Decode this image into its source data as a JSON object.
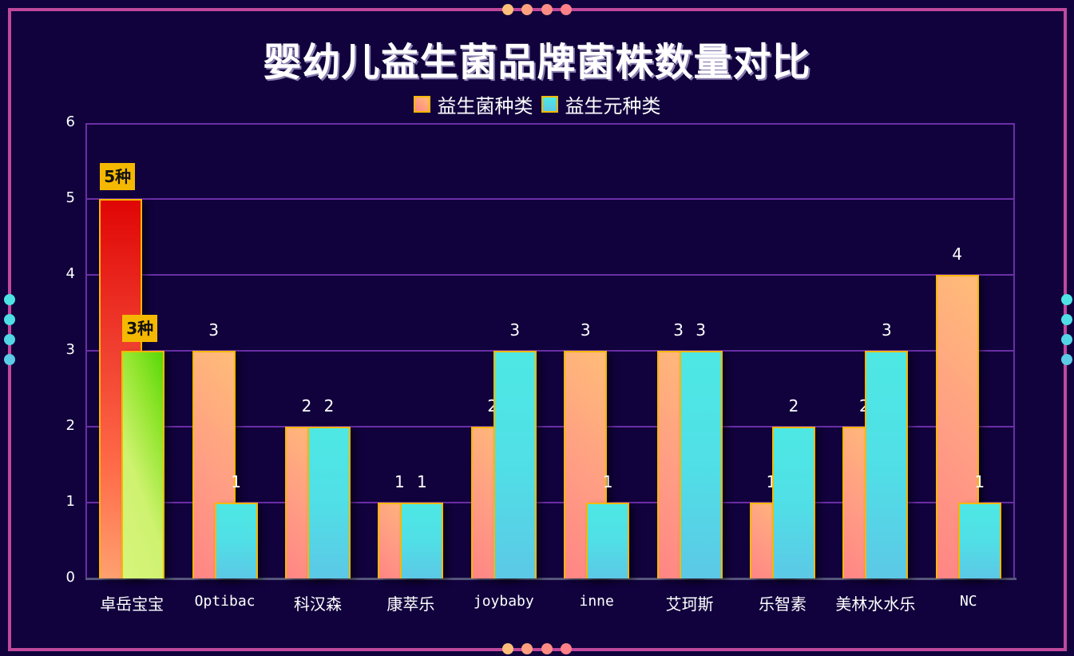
{
  "title": "婴幼儿益生菌品牌菌株数量对比",
  "legend": [
    {
      "label": "益生菌种类",
      "swatch": "probiotic"
    },
    {
      "label": "益生元种类",
      "swatch": "prebiotic"
    }
  ],
  "colors": {
    "background": "#11023d",
    "frame": "#c0499c",
    "grid": "#6b2ea6",
    "bar_border": "#f5b800",
    "probiotic_gradient": [
      "#ff8585",
      "#ffbc78"
    ],
    "prebiotic_gradient": [
      "#4ee8e4",
      "#5cc8e6"
    ],
    "highlight_probiotic": [
      "#e00606",
      "#ffa070"
    ],
    "highlight_prebiotic": [
      "#56d80a",
      "#d6f47c"
    ],
    "highlight_label_bg": "#f5b800"
  },
  "highlight_labels": {
    "probiotic": "5种",
    "prebiotic": "3种"
  },
  "chart_data": {
    "type": "bar",
    "title": "婴幼儿益生菌品牌菌株数量对比",
    "categories": [
      "卓岳宝宝",
      "Optibac",
      "科汉森",
      "康萃乐",
      "joybaby",
      "inne",
      "艾珂斯",
      "乐智素",
      "美林水水乐",
      "NC"
    ],
    "series": [
      {
        "name": "益生菌种类",
        "values": [
          5,
          3,
          2,
          1,
          2,
          3,
          3,
          1,
          2,
          4
        ]
      },
      {
        "name": "益生元种类",
        "values": [
          3,
          1,
          2,
          1,
          3,
          1,
          3,
          2,
          3,
          1
        ]
      }
    ],
    "xlabel": "",
    "ylabel": "",
    "ylim": [
      0,
      6
    ],
    "yticks": [
      "0",
      "1",
      "2",
      "3",
      "4",
      "5",
      "6"
    ],
    "grid": true,
    "legend_position": "top-center",
    "annotations": [
      {
        "category": "卓岳宝宝",
        "series": "益生菌种类",
        "text": "5种"
      },
      {
        "category": "卓岳宝宝",
        "series": "益生元种类",
        "text": "3种"
      }
    ]
  }
}
